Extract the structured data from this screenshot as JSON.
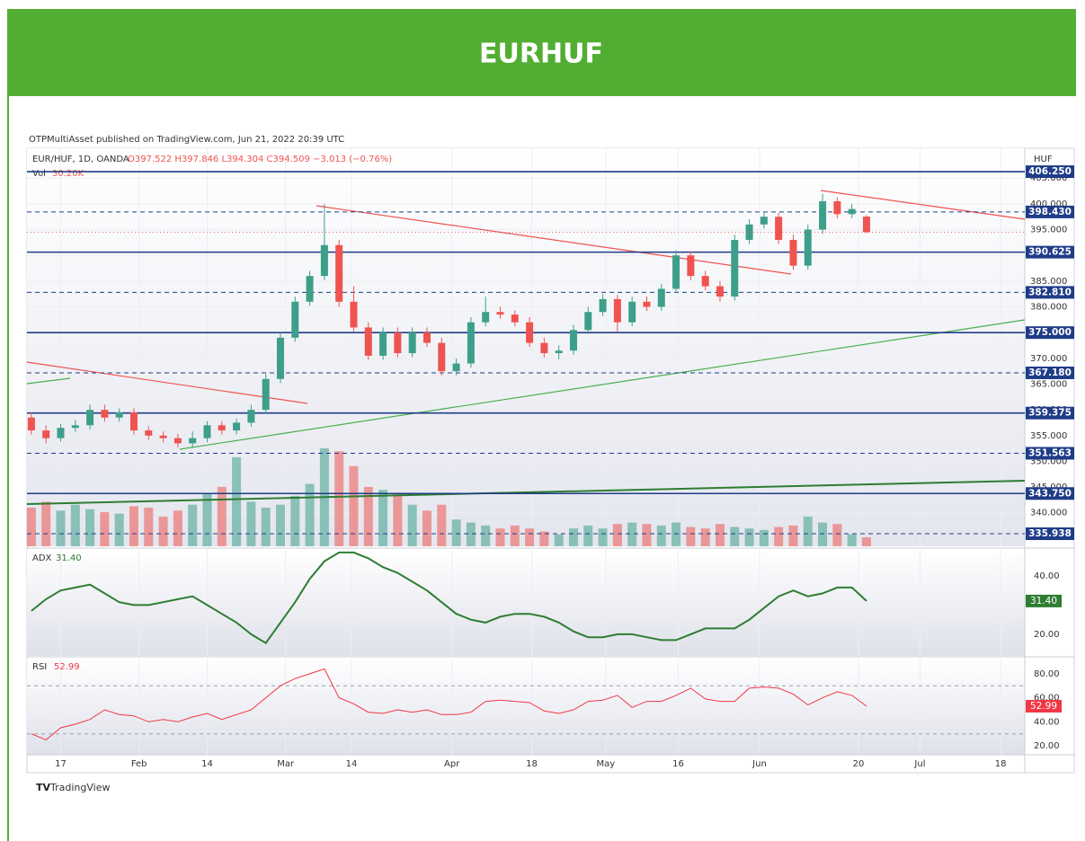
{
  "header": {
    "title": "EURHUF"
  },
  "published": "OTPMultiAsset published on TradingView.com, Jun 21, 2022 20:39 UTC",
  "footer": "TradingView",
  "chart_data": {
    "type": "candlestick",
    "symbol": "EUR/HUF, 1D, OANDA",
    "ohlc_text": "O397.522 H397.846 L394.304 C394.509 −3.013 (−0.76%)",
    "currency": "HUF",
    "up_color": "#3d9f8a",
    "down_color": "#ef5350",
    "x": [
      0,
      2,
      4,
      6,
      8,
      10,
      12,
      14,
      16,
      18,
      20,
      22,
      24,
      26,
      28,
      30,
      32,
      34,
      36,
      38,
      40,
      42,
      44,
      46,
      48,
      50,
      52,
      54,
      56,
      58,
      60,
      62,
      64,
      66,
      68,
      70,
      72,
      74,
      76,
      78,
      80,
      82,
      84,
      86,
      88,
      90,
      92,
      94,
      96,
      98,
      100,
      102,
      104,
      106,
      108,
      110,
      112,
      114
    ],
    "xlim": [
      -0.6,
      135.6
    ],
    "xticks": [
      {
        "value": 4,
        "label": "17"
      },
      {
        "value": 14.7,
        "label": "Feb"
      },
      {
        "value": 24,
        "label": "14"
      },
      {
        "value": 34.7,
        "label": "Mar"
      },
      {
        "value": 43.7,
        "label": "14"
      },
      {
        "value": 57.4,
        "label": "Apr"
      },
      {
        "value": 68.3,
        "label": "18"
      },
      {
        "value": 78.4,
        "label": "May"
      },
      {
        "value": 88.3,
        "label": "16"
      },
      {
        "value": 99.4,
        "label": "Jun"
      },
      {
        "value": 112.9,
        "label": "20"
      },
      {
        "value": 121.3,
        "label": "Jul"
      },
      {
        "value": 132.3,
        "label": "18"
      }
    ],
    "ohlc": [
      [
        358.5,
        359.5,
        355.2,
        356
      ],
      [
        356,
        357,
        353.5,
        354.5
      ],
      [
        354.5,
        357.3,
        353.8,
        356.5
      ],
      [
        356.5,
        358,
        355.7,
        357
      ],
      [
        357,
        361,
        356.2,
        360
      ],
      [
        360,
        361,
        357.7,
        358.5
      ],
      [
        358.5,
        360.3,
        357.7,
        359.5
      ],
      [
        359.5,
        360.3,
        355.2,
        356
      ],
      [
        356,
        356.8,
        354.2,
        355
      ],
      [
        355,
        355.8,
        353.7,
        354.5
      ],
      [
        354.5,
        355.3,
        352.7,
        353.5
      ],
      [
        353.5,
        355.8,
        352.7,
        354.5
      ],
      [
        354.5,
        357.8,
        353.7,
        357
      ],
      [
        357,
        357.8,
        355.2,
        356
      ],
      [
        356,
        358.3,
        355.2,
        357.5
      ],
      [
        357.5,
        361,
        356.7,
        360
      ],
      [
        360,
        367,
        359.2,
        366
      ],
      [
        366,
        375,
        365.2,
        374
      ],
      [
        374,
        382,
        373.2,
        381
      ],
      [
        381,
        387,
        380.2,
        386
      ],
      [
        386,
        400,
        385.2,
        392
      ],
      [
        392,
        393,
        380,
        381
      ],
      [
        381,
        384,
        375.2,
        376
      ],
      [
        376,
        377,
        369.7,
        370.5
      ],
      [
        370.5,
        376,
        369.7,
        375
      ],
      [
        375,
        376,
        370.2,
        371
      ],
      [
        371,
        376,
        370.2,
        375
      ],
      [
        375,
        376,
        372.2,
        373
      ],
      [
        373,
        374,
        366.7,
        367.5
      ],
      [
        367.5,
        370,
        366.7,
        369
      ],
      [
        369,
        378,
        368.2,
        377
      ],
      [
        377,
        382,
        376.2,
        379
      ],
      [
        379,
        380,
        377.7,
        378.5
      ],
      [
        378.5,
        379.3,
        376.2,
        377
      ],
      [
        377,
        378,
        372.2,
        373
      ],
      [
        373,
        374,
        370.2,
        371
      ],
      [
        371,
        372.5,
        369.8,
        371.5
      ],
      [
        371.5,
        376.5,
        370.7,
        375.5
      ],
      [
        375.5,
        380,
        374.7,
        379
      ],
      [
        379,
        382.5,
        378.2,
        381.5
      ],
      [
        381.5,
        382.3,
        375,
        377
      ],
      [
        377,
        382,
        376.2,
        381
      ],
      [
        381,
        382,
        379.2,
        380
      ],
      [
        380,
        384.5,
        379.2,
        383.5
      ],
      [
        383.5,
        391,
        382.7,
        390
      ],
      [
        390,
        390.8,
        385.2,
        386
      ],
      [
        386,
        387,
        383.2,
        384
      ],
      [
        384,
        385,
        381,
        382
      ],
      [
        382,
        394,
        381.2,
        393
      ],
      [
        393,
        397,
        392.2,
        396
      ],
      [
        396,
        398.5,
        395.2,
        397.5
      ],
      [
        397.5,
        398.3,
        392.2,
        393
      ],
      [
        393,
        394,
        387.2,
        388
      ],
      [
        388,
        396,
        387.2,
        395
      ],
      [
        395,
        402,
        394.2,
        400.5
      ],
      [
        400.5,
        401.3,
        397.2,
        398
      ],
      [
        398,
        400,
        397.2,
        399
      ],
      [
        397.522,
        397.846,
        394.304,
        394.509
      ]
    ],
    "ylim": [
      333.5,
      410.8
    ],
    "yticks": [
      {
        "value": 340,
        "label": "340.000"
      },
      {
        "value": 345,
        "label": "345.000"
      },
      {
        "value": 350,
        "label": "350.000"
      },
      {
        "value": 355,
        "label": "355.000"
      },
      {
        "value": 360,
        "label": "360.000"
      },
      {
        "value": 365,
        "label": "365.000"
      },
      {
        "value": 370,
        "label": "370.000"
      },
      {
        "value": 375,
        "label": "375.000"
      },
      {
        "value": 380,
        "label": "380.000"
      },
      {
        "value": 385,
        "label": "385.000"
      },
      {
        "value": 390,
        "label": "390.000"
      },
      {
        "value": 395,
        "label": "395.000"
      },
      {
        "value": 400,
        "label": "400.000"
      },
      {
        "value": 405,
        "label": "405.000"
      }
    ],
    "levels": [
      {
        "value": 406.25,
        "label": "406.250",
        "style": "solid"
      },
      {
        "value": 398.43,
        "label": "398.430",
        "style": "dashed"
      },
      {
        "value": 390.625,
        "label": "390.625",
        "style": "solid"
      },
      {
        "value": 382.81,
        "label": "382.810",
        "style": "dashed"
      },
      {
        "value": 375,
        "label": "375.000",
        "style": "solid"
      },
      {
        "value": 367.18,
        "label": "367.180",
        "style": "dashed"
      },
      {
        "value": 359.375,
        "label": "359.375",
        "style": "solid"
      },
      {
        "value": 351.563,
        "label": "351.563",
        "style": "dashed"
      },
      {
        "value": 343.75,
        "label": "343.750",
        "style": "solid"
      },
      {
        "value": 335.938,
        "label": "335.938",
        "style": "dashed"
      }
    ],
    "volume": {
      "name": "Vol",
      "last_label": "30.20K",
      "ylim": [
        0,
        1340
      ],
      "values": [
        130,
        150,
        120,
        140,
        125,
        115,
        110,
        135,
        130,
        100,
        120,
        140,
        180,
        200,
        300,
        150,
        130,
        140,
        170,
        210,
        330,
        320,
        270,
        200,
        190,
        180,
        140,
        120,
        140,
        90,
        80,
        70,
        60,
        70,
        60,
        50,
        40,
        60,
        70,
        60,
        75,
        80,
        75,
        70,
        80,
        65,
        60,
        75,
        65,
        60,
        55,
        65,
        70,
        100,
        80,
        75,
        40,
        30.2
      ]
    },
    "indicators": [
      {
        "name": "ADX",
        "color": "#2e7d32",
        "last_label": "31.40",
        "ylim": [
          12.6,
          48.9
        ],
        "yticks": [
          {
            "value": 20,
            "label": "20.00"
          },
          {
            "value": 40,
            "label": "40.00"
          }
        ],
        "values": [
          28,
          32,
          35,
          36,
          37,
          34,
          31,
          30,
          30,
          31,
          32,
          33,
          30,
          27,
          24,
          20,
          17,
          24,
          31,
          39,
          45,
          48,
          48,
          46,
          43,
          41,
          38,
          35,
          31,
          27,
          25,
          24,
          26,
          27,
          27,
          26,
          24,
          21,
          19,
          19,
          20,
          20,
          19,
          18,
          18,
          20,
          22,
          22,
          22,
          25,
          29,
          33,
          35,
          33,
          34,
          36,
          36,
          31.4
        ]
      },
      {
        "name": "RSI",
        "color": "#f23645",
        "last_label": "52.99",
        "ylim": [
          12.6,
          92.6
        ],
        "yticks": [
          {
            "value": 20,
            "label": "20.00"
          },
          {
            "value": 40,
            "label": "40.00"
          },
          {
            "value": 60,
            "label": "60.00"
          },
          {
            "value": 80,
            "label": "80.00"
          }
        ],
        "bands": [
          70,
          30
        ],
        "values": [
          30,
          25,
          35,
          38,
          42,
          50,
          46,
          45,
          40,
          42,
          40,
          44,
          47,
          42,
          46,
          50,
          60,
          70,
          76,
          80,
          84,
          60,
          55,
          48,
          47,
          50,
          48,
          50,
          46,
          46,
          48,
          57,
          58,
          57,
          56,
          49,
          47,
          50,
          57,
          58,
          62,
          52,
          57,
          57,
          62,
          68,
          59,
          57,
          57,
          68,
          69,
          68,
          63,
          54,
          60,
          65,
          62,
          52.99
        ]
      }
    ]
  }
}
